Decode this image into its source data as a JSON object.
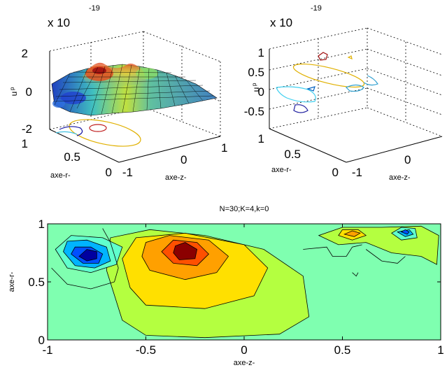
{
  "chart_data": [
    {
      "type": "surface",
      "exponent_label": "x 10",
      "exponent_power": "-19",
      "zlabel": "u",
      "zlabel_sub": "p",
      "xlabel": "axe-z-",
      "ylabel": "axe-r-",
      "ztick_labels": [
        "2",
        "0",
        "-2"
      ],
      "rtick_labels": [
        "1",
        "0.5",
        "0"
      ],
      "ztick_axis_labels": [
        "-1",
        "0",
        "1"
      ],
      "zlim": [
        -2,
        2
      ],
      "grid": true,
      "colormap": "jet",
      "colors": {
        "mesh_edge": "#000000",
        "accent": "#d06010"
      }
    },
    {
      "type": "contour3",
      "exponent_label": "x 10",
      "exponent_power": "-19",
      "zlabel": "u",
      "zlabel_sub": "p",
      "xlabel": "axe-z-",
      "ylabel": "axe-r-",
      "ztick_labels": [
        "1",
        "0.5",
        "0",
        "-0.5"
      ],
      "rtick_labels": [
        "1",
        "0.5",
        "0"
      ],
      "ztick_axis_labels": [
        "-1",
        "0"
      ],
      "zlim": [
        -1,
        1
      ],
      "grid": true
    },
    {
      "type": "contourf",
      "title": "N=30;K=4,k=0",
      "xlabel": "axe-z-",
      "ylabel": "axe-r-",
      "xlim": [
        -1,
        1
      ],
      "ylim": [
        0,
        1
      ],
      "xtick_labels": [
        "-1",
        "-0.5",
        "0",
        "0.5",
        "1"
      ],
      "ytick_labels": [
        "0",
        "0.5",
        "1"
      ],
      "xticks": [
        -1,
        -0.5,
        0,
        0.5,
        1
      ],
      "yticks": [
        0,
        0.5,
        1
      ],
      "level_colors": [
        "#0000a0",
        "#0050ff",
        "#00b4ff",
        "#60ffcc",
        "#b4ff40",
        "#ffe000",
        "#ffa000",
        "#ff5000",
        "#8b0000"
      ],
      "background_color": "#7fffb0",
      "features": [
        {
          "name": "positive-lobe",
          "center_z": -0.3,
          "center_r": 0.75,
          "peak_level": 8
        },
        {
          "name": "negative-lobe-left",
          "center_z": -0.78,
          "center_r": 0.72,
          "peak_level": 0
        },
        {
          "name": "positive-lobe-right",
          "center_z": 0.55,
          "center_r": 0.88,
          "peak_level": 6
        },
        {
          "name": "negative-lobe-right",
          "center_z": 0.82,
          "center_r": 0.92,
          "peak_level": 1
        }
      ]
    }
  ]
}
